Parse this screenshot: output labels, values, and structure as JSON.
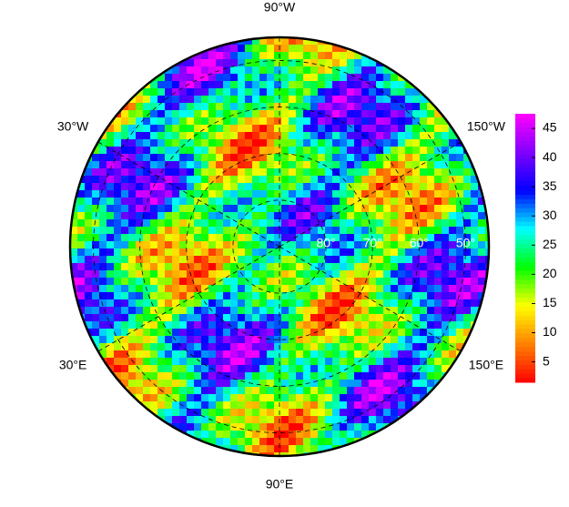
{
  "map": {
    "projection": "north-polar",
    "lat_limit": 45,
    "meridians": [
      {
        "value": -90,
        "label": "90°W"
      },
      {
        "value": -30,
        "label": "30°W"
      },
      {
        "value": -150,
        "label": "150°W"
      },
      {
        "value": 30,
        "label": "30°E"
      },
      {
        "value": 150,
        "label": "150°E"
      },
      {
        "value": 90,
        "label": "90°E"
      }
    ],
    "parallels": [
      {
        "value": 80,
        "label": "80°"
      },
      {
        "value": 70,
        "label": "70°"
      },
      {
        "value": 60,
        "label": "60°"
      },
      {
        "value": 50,
        "label": "50°"
      }
    ],
    "colorbar": {
      "lim": [
        1.5,
        47.5
      ],
      "ticks": [
        5,
        10,
        15,
        20,
        25,
        30,
        35,
        40,
        45
      ],
      "colormap": [
        "#ff0000",
        "#ff8000",
        "#ffff00",
        "#00ff00",
        "#00ffff",
        "#0000ff",
        "#8000ff",
        "#ff00ff"
      ]
    }
  }
}
